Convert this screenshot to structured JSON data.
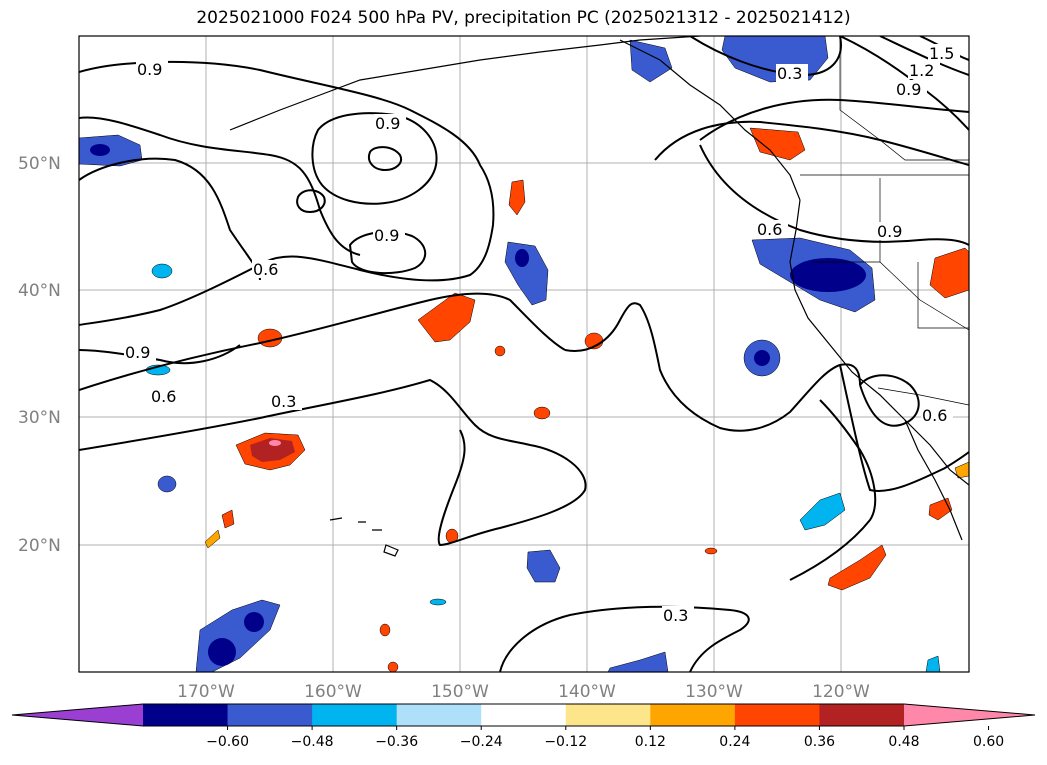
{
  "title": "2025021000 F024 500 hPa PV, precipitation PC (2025021312 - 2025021412)",
  "lat_labels": [
    "50°N",
    "40°N",
    "30°N",
    "20°N"
  ],
  "lon_labels": [
    "170°W",
    "160°W",
    "150°W",
    "140°W",
    "130°W",
    "120°W"
  ],
  "contour_labels": {
    "c09a": "0.9",
    "c09b": "0.9",
    "c09c": "0.9",
    "c09d": "0.9",
    "c09e": "0.9",
    "c09f": "0.9",
    "c06a": "0.6",
    "c06b": "0.6",
    "c06c": "0.6",
    "c06d": "0.6",
    "c03a": "0.3",
    "c03b": "0.3",
    "c03c": "0.3",
    "c12": "1.2",
    "c15": "1.5"
  },
  "colorbar": {
    "ticks": [
      "−0.60",
      "−0.48",
      "−0.36",
      "−0.24",
      "−0.12",
      "0.12",
      "0.24",
      "0.36",
      "0.48",
      "0.60"
    ],
    "colors": [
      "#9a3fd1",
      "#00008b",
      "#3a5bd0",
      "#00b4f0",
      "#aee0fa",
      "#ffffff",
      "#fde58c",
      "#ffa500",
      "#ff4500",
      "#b22222",
      "#ff88aa"
    ]
  }
}
